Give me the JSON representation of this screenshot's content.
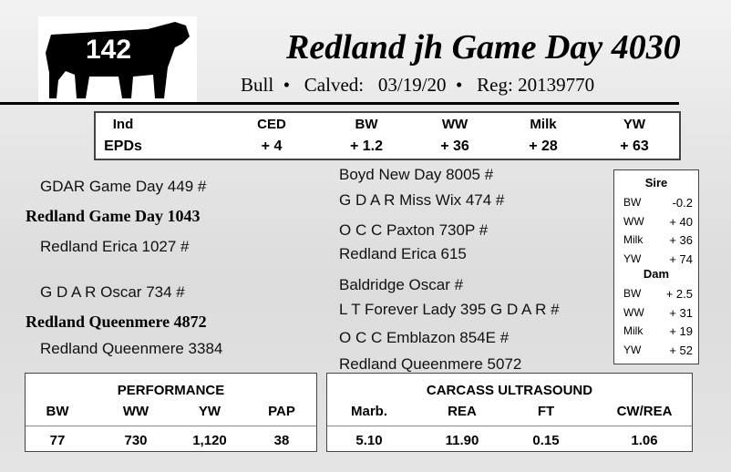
{
  "header": {
    "lot": "142",
    "title": "Redland jh Game Day 4030",
    "sex": "Bull",
    "calved_label": "Calved:",
    "calved": "03/19/20",
    "reg_label": "Reg:",
    "reg": "20139770"
  },
  "epds": {
    "headers": [
      "Ind",
      "CED",
      "BW",
      "WW",
      "Milk",
      "YW"
    ],
    "row": [
      "EPDs",
      "+ 4",
      "+ 1.2",
      "+ 36",
      "+ 28",
      "+ 63"
    ]
  },
  "pedigree": {
    "left": [
      "GDAR Game Day 449 #",
      "Redland Game Day 1043",
      "Redland Erica 1027 #",
      "G D A R Oscar 734 #",
      "Redland Queenmere 4872",
      "Redland Queenmere 3384"
    ],
    "right": [
      "Boyd New Day 8005 #",
      "G D A R Miss Wix 474 #",
      "O C C Paxton 730P #",
      "Redland Erica 615",
      "Baldridge Oscar #",
      "L T Forever Lady 395 G D A R #",
      "O C C Emblazon 854E #",
      "Redland Queenmere 5072"
    ]
  },
  "sire_epds": {
    "title": "Sire",
    "rows": [
      [
        "BW",
        "-0.2"
      ],
      [
        "WW",
        "+ 40"
      ],
      [
        "Milk",
        "+ 36"
      ],
      [
        "YW",
        "+ 74"
      ]
    ]
  },
  "dam_epds": {
    "title": "Dam",
    "rows": [
      [
        "BW",
        "+ 2.5"
      ],
      [
        "WW",
        "+ 31"
      ],
      [
        "Milk",
        "+ 19"
      ],
      [
        "YW",
        "+ 52"
      ]
    ]
  },
  "performance": {
    "title": "PERFORMANCE",
    "headers": [
      "BW",
      "WW",
      "YW",
      "PAP"
    ],
    "values": [
      "77",
      "730",
      "1,120",
      "38"
    ]
  },
  "carcass": {
    "title": "CARCASS ULTRASOUND",
    "headers": [
      "Marb.",
      "REA",
      "FT",
      "CW/REA"
    ],
    "values": [
      "5.10",
      "11.90",
      "0.15",
      "1.06"
    ]
  }
}
